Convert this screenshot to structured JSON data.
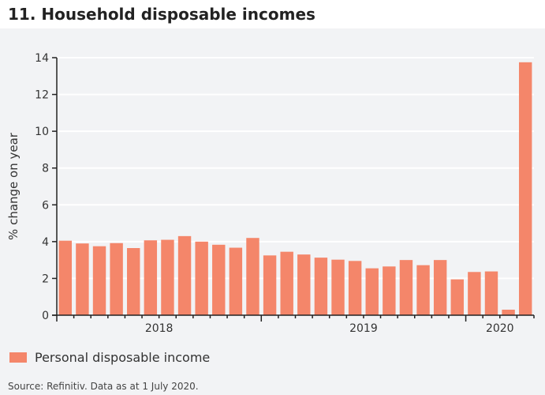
{
  "title": "11. Household disposable incomes",
  "source": "Source: Refinitiv. Data as at 1 July 2020.",
  "colors": {
    "bar": "#f4866a"
  },
  "chart_data": {
    "type": "bar",
    "ylabel": "% change on year",
    "ylim": [
      0,
      14
    ],
    "yticks": [
      0,
      2,
      4,
      6,
      8,
      10,
      12,
      14
    ],
    "grid": true,
    "legend_placement": "bottom-left",
    "x_year_labels": [
      "2018",
      "2019",
      "2020"
    ],
    "categories": [
      "Jan 2018",
      "Feb 2018",
      "Mar 2018",
      "Apr 2018",
      "May 2018",
      "Jun 2018",
      "Jul 2018",
      "Aug 2018",
      "Sep 2018",
      "Oct 2018",
      "Nov 2018",
      "Dec 2018",
      "Jan 2019",
      "Feb 2019",
      "Mar 2019",
      "Apr 2019",
      "May 2019",
      "Jun 2019",
      "Jul 2019",
      "Aug 2019",
      "Sep 2019",
      "Oct 2019",
      "Nov 2019",
      "Dec 2019",
      "Jan 2020",
      "Feb 2020",
      "Mar 2020",
      "Apr 2020"
    ],
    "series": [
      {
        "name": "Personal disposable income",
        "values": [
          4.05,
          3.9,
          3.75,
          3.92,
          3.65,
          4.07,
          4.1,
          4.3,
          4.0,
          3.83,
          3.67,
          4.2,
          3.25,
          3.45,
          3.3,
          3.13,
          3.02,
          2.95,
          2.55,
          2.65,
          3.0,
          2.72,
          3.0,
          1.95,
          2.35,
          2.38,
          0.3,
          13.75
        ]
      }
    ]
  }
}
